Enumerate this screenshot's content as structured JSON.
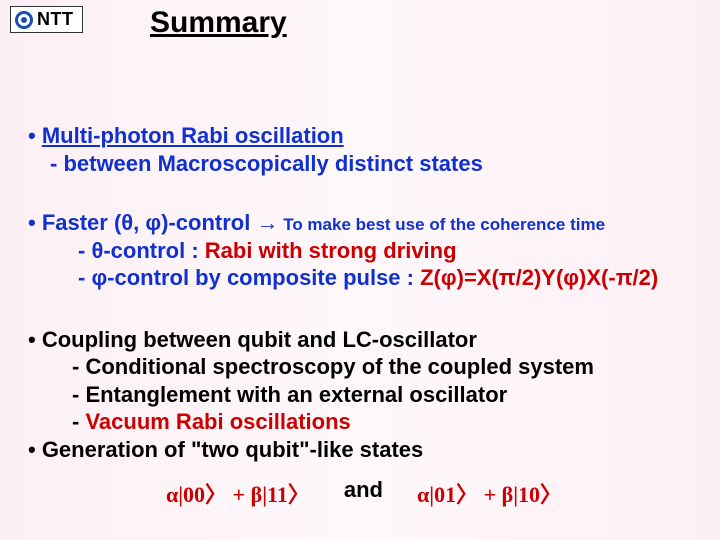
{
  "logo": {
    "text": "NTT"
  },
  "title": "Summary",
  "block1": {
    "line1_a": "• ",
    "line1_b": "Multi-photon Rabi oscillation",
    "line2": "- between Macroscopically distinct states"
  },
  "block2": {
    "line1_a": "• Faster (θ, φ)-control ",
    "line1_arrow": "→",
    "line1_b": " To make best use of the coherence time",
    "line2_a": "- θ-control : ",
    "line2_b": "Rabi with strong driving",
    "line3_a": "- φ-control by composite pulse : ",
    "line3_b": "Z(φ)=X(π/2)Y(φ)X(-π/2)"
  },
  "block3": {
    "line1": "• Coupling between qubit and LC-oscillator",
    "line2": "- Conditional spectroscopy of the coupled system",
    "line3": "- Entanglement with an external oscillator",
    "line4_a": "- ",
    "line4_b": "Vacuum Rabi oscillations",
    "line5": "• Generation of \"two qubit\"-like states"
  },
  "formula": {
    "left": "α|00〉 + β|11〉",
    "mid": "and",
    "right": "α|01〉 + β|10〉"
  },
  "colors": {
    "blue": "#1030d0",
    "red": "#cc0000",
    "bg_edge": "#fdf0f5",
    "bg_mid": "#fef8fb"
  }
}
